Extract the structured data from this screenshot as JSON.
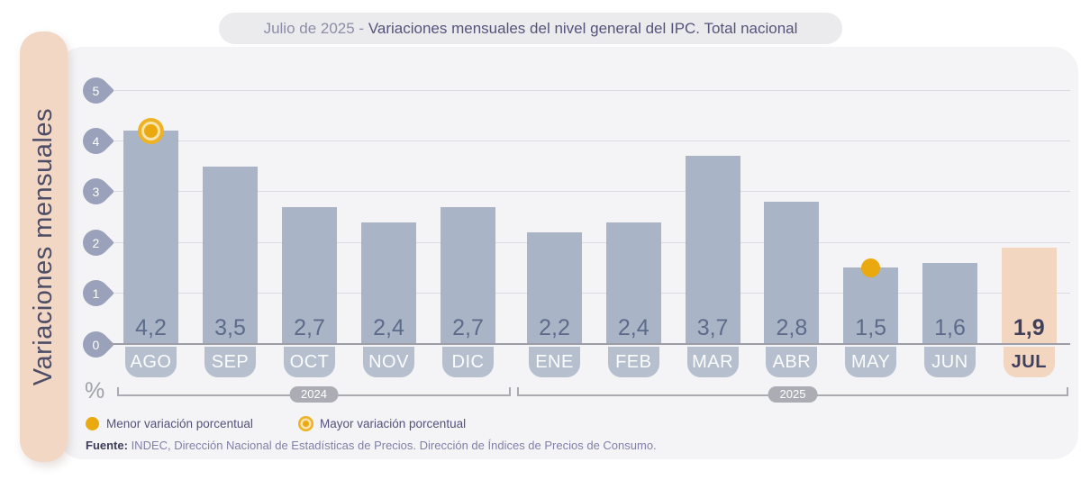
{
  "title": {
    "prefix": "Julio de 2025 - ",
    "main": "Variaciones mensuales del nivel general del IPC. Total nacional"
  },
  "sidebar_label": "Variaciones mensuales",
  "axis": {
    "unit_symbol": "%"
  },
  "chart_data": {
    "type": "bar",
    "title": "Julio de 2025 - Variaciones mensuales del nivel general del IPC. Total nacional",
    "ylabel": "Variaciones mensuales",
    "unit": "%",
    "ylim": [
      0,
      5
    ],
    "yticks": [
      0,
      1,
      2,
      3,
      4,
      5
    ],
    "grid": true,
    "legend_position": "bottom",
    "categories": [
      "AGO",
      "SEP",
      "OCT",
      "NOV",
      "DIC",
      "ENE",
      "FEB",
      "MAR",
      "ABR",
      "MAY",
      "JUN",
      "JUL"
    ],
    "values": [
      4.2,
      3.5,
      2.7,
      2.4,
      2.7,
      2.2,
      2.4,
      3.7,
      2.8,
      1.5,
      1.6,
      1.9
    ],
    "value_labels": [
      "4,2",
      "3,5",
      "2,7",
      "2,4",
      "2,7",
      "2,2",
      "2,4",
      "3,7",
      "2,8",
      "1,5",
      "1,6",
      "1,9"
    ],
    "year_groups": [
      {
        "label": "2024",
        "months": [
          "AGO",
          "SEP",
          "OCT",
          "NOV",
          "DIC"
        ]
      },
      {
        "label": "2025",
        "months": [
          "ENE",
          "FEB",
          "MAR",
          "ABR",
          "MAY",
          "JUN",
          "JUL"
        ]
      }
    ],
    "max_marker_month": "AGO",
    "min_marker_month": "MAY",
    "highlight_month": "JUL"
  },
  "legend": {
    "items": [
      {
        "marker": "solid-dot",
        "label": "Menor variación porcentual"
      },
      {
        "marker": "ring-dot",
        "label": "Mayor variación porcentual"
      }
    ]
  },
  "source": {
    "label": "Fuente:",
    "text": " INDEC, Dirección Nacional de Estadísticas de Precios. Dirección de Índices de Precios de Consumo."
  },
  "colors": {
    "bar": "#a9b4c6",
    "bar_highlight": "#f3d6bf",
    "tab": "#b6bfce",
    "tab_highlight": "#f3d6bf",
    "badge": "#9aa1bb",
    "gold": "#e9a90f",
    "gold_ring": "#eeb325",
    "gold_gap": "#f7e3ae",
    "panel_bg": "#f4f4f7",
    "sidebar_bg": "#f3d7c5",
    "value_text": "#5d6b8b",
    "highlight_text": "#3f3f5e"
  }
}
